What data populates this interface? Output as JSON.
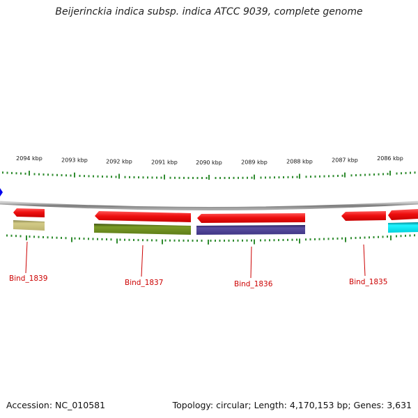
{
  "title": "Beijerinckia indica subsp. indica ATCC 9039, complete genome",
  "footer": {
    "accession": "Accession: NC_010581",
    "summary": "Topology: circular; Length: 4,170,153 bp; Genes: 3,631"
  },
  "ruler_labels": [
    "2094 kbp",
    "2093 kbp",
    "2092 kbp",
    "2091 kbp",
    "2090 kbp",
    "2089 kbp",
    "2088 kbp",
    "2087 kbp",
    "2086 kbp"
  ],
  "gene_labels": [
    "Bind_1839",
    "Bind_1837",
    "Bind_1836",
    "Bind_1835"
  ],
  "colors": {
    "backbone": "#8c8c8c",
    "tick": "#2e8b2e",
    "gene_arrow": "#ee1111",
    "label": "#cc0000",
    "olive_light": "#c8c07a",
    "olive_dark": "#6b8a1e",
    "navy": "#4a3f8f",
    "cyan": "#00e5f0",
    "marker": "#0000ee"
  }
}
